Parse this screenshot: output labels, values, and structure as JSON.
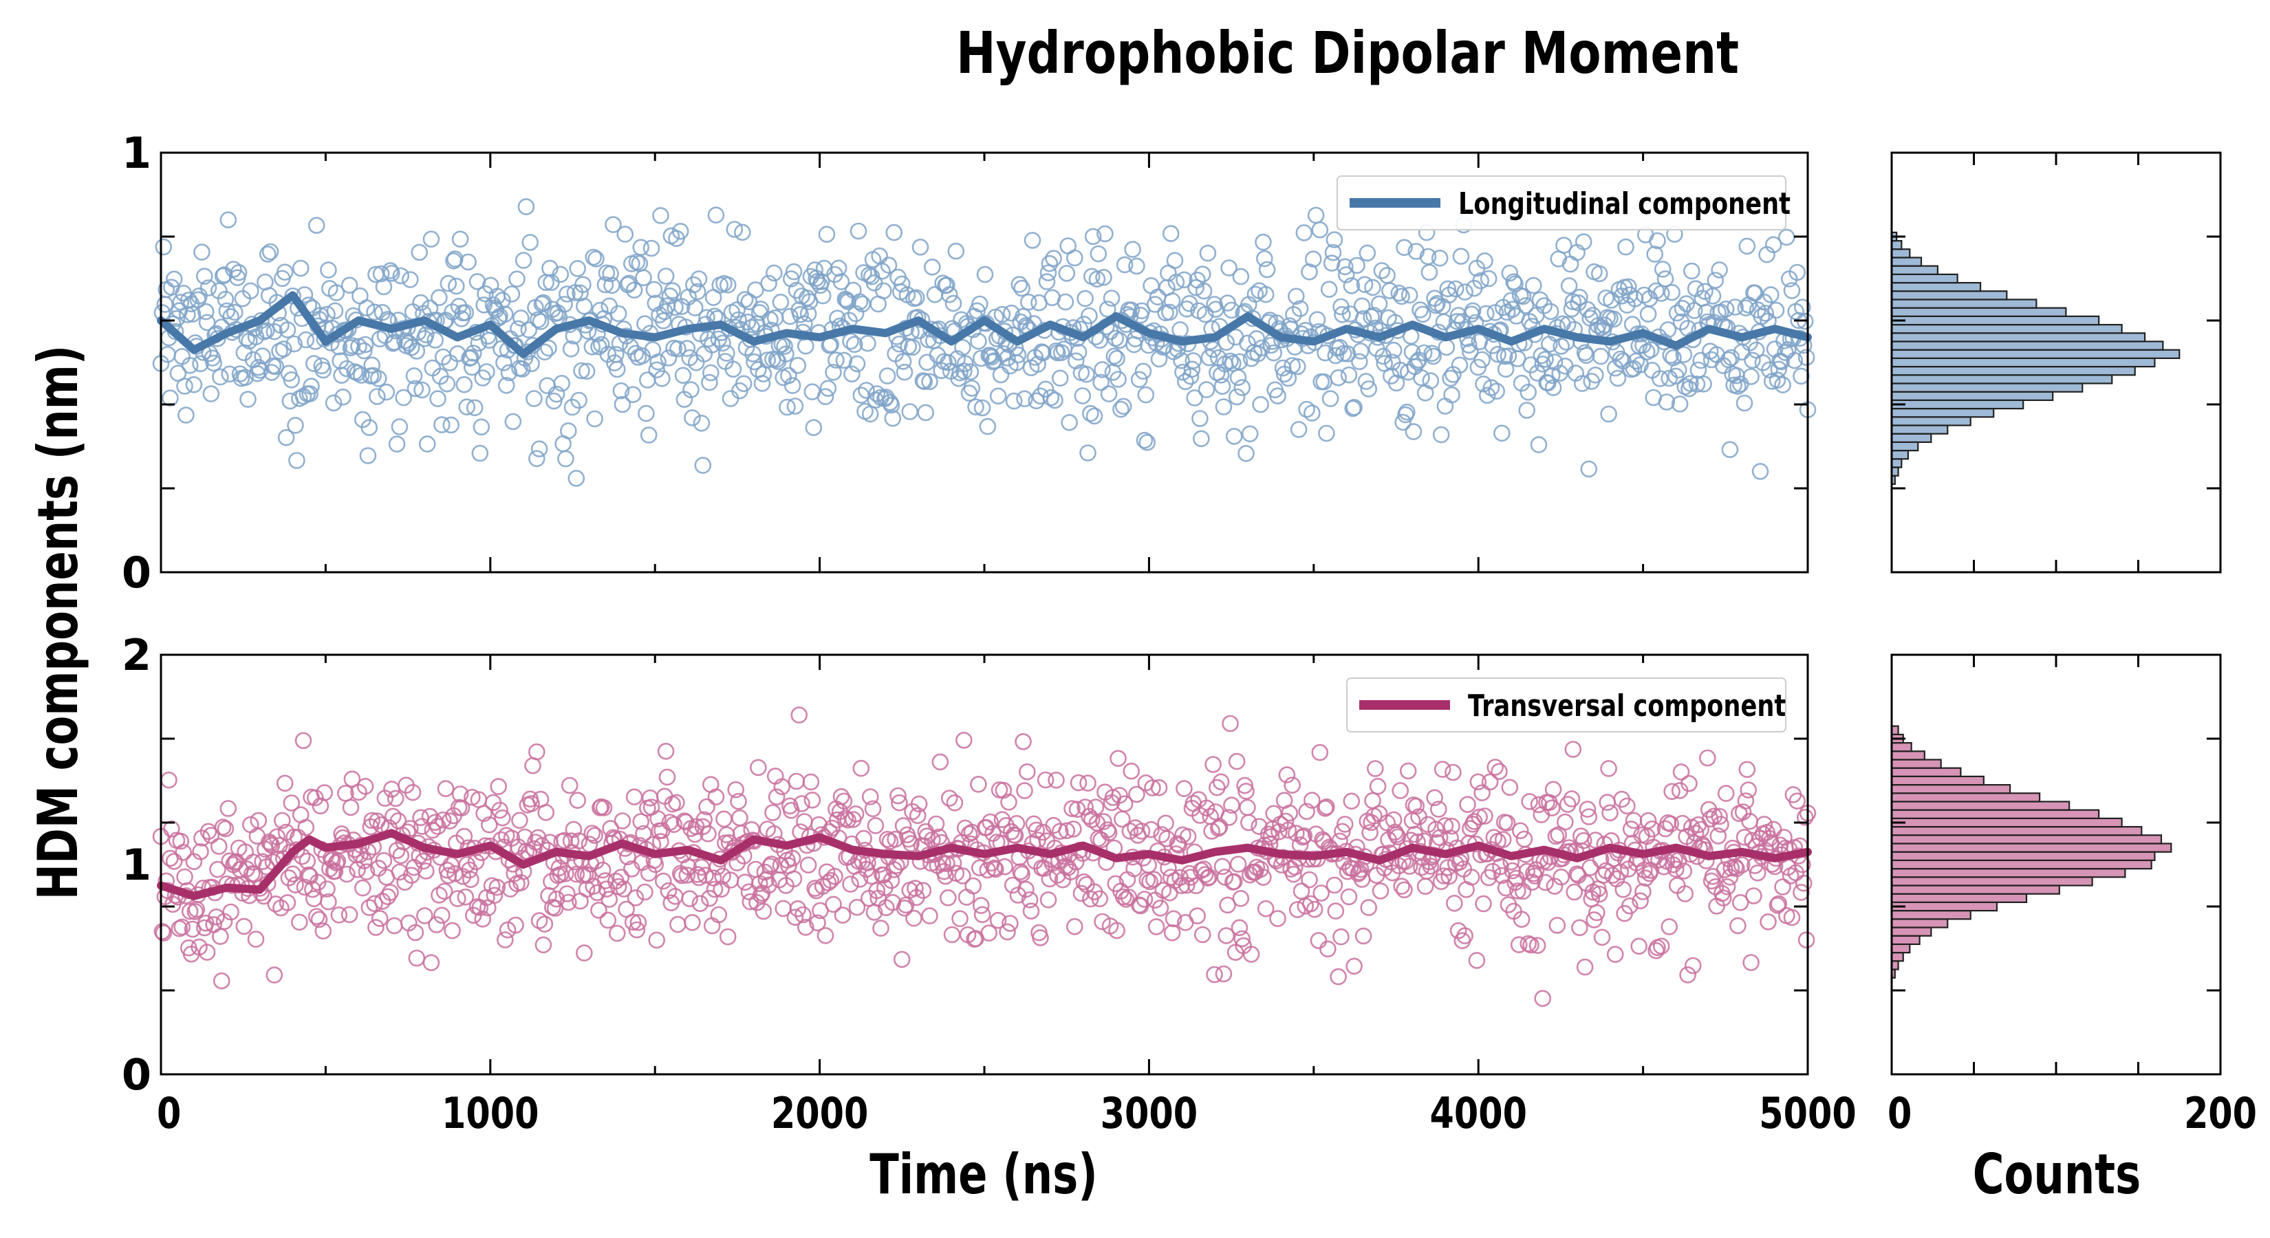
{
  "chart_data": {
    "type": "scatter",
    "title": "Hydrophobic Dipolar Moment",
    "xlabel": "Time (ns)",
    "ylabel": "HDM components (nm)",
    "hist_xlabel": "Counts",
    "xlim": [
      0,
      5000
    ],
    "x_ticks": [
      "0",
      "1000",
      "2000",
      "3000",
      "4000",
      "5000"
    ],
    "hist_xlim": [
      0,
      200
    ],
    "hist_x_ticks": [
      "0",
      "200"
    ],
    "grid": false,
    "legend_position": "top-right",
    "panels": [
      {
        "name": "Longitudinal component",
        "color": "#4878a8",
        "marker_color": "#7fa3c8",
        "ylim": [
          0,
          1
        ],
        "y_ticks": [
          "0",
          "1"
        ],
        "scatter_mean": 0.57,
        "scatter_sd": 0.11,
        "moving_average": [
          [
            0,
            0.6
          ],
          [
            100,
            0.53
          ],
          [
            200,
            0.57
          ],
          [
            300,
            0.6
          ],
          [
            400,
            0.66
          ],
          [
            500,
            0.55
          ],
          [
            600,
            0.6
          ],
          [
            700,
            0.58
          ],
          [
            800,
            0.6
          ],
          [
            900,
            0.56
          ],
          [
            1000,
            0.59
          ],
          [
            1100,
            0.52
          ],
          [
            1200,
            0.58
          ],
          [
            1300,
            0.6
          ],
          [
            1400,
            0.57
          ],
          [
            1500,
            0.56
          ],
          [
            1600,
            0.58
          ],
          [
            1700,
            0.59
          ],
          [
            1800,
            0.55
          ],
          [
            1900,
            0.57
          ],
          [
            2000,
            0.56
          ],
          [
            2100,
            0.58
          ],
          [
            2200,
            0.57
          ],
          [
            2300,
            0.6
          ],
          [
            2400,
            0.55
          ],
          [
            2500,
            0.6
          ],
          [
            2600,
            0.55
          ],
          [
            2700,
            0.59
          ],
          [
            2800,
            0.56
          ],
          [
            2900,
            0.61
          ],
          [
            3000,
            0.57
          ],
          [
            3100,
            0.55
          ],
          [
            3200,
            0.56
          ],
          [
            3300,
            0.61
          ],
          [
            3400,
            0.56
          ],
          [
            3500,
            0.55
          ],
          [
            3600,
            0.58
          ],
          [
            3700,
            0.56
          ],
          [
            3800,
            0.59
          ],
          [
            3900,
            0.56
          ],
          [
            4000,
            0.58
          ],
          [
            4100,
            0.55
          ],
          [
            4200,
            0.58
          ],
          [
            4300,
            0.56
          ],
          [
            4400,
            0.55
          ],
          [
            4500,
            0.57
          ],
          [
            4600,
            0.54
          ],
          [
            4700,
            0.58
          ],
          [
            4800,
            0.56
          ],
          [
            4900,
            0.58
          ],
          [
            5000,
            0.56
          ]
        ],
        "histogram": {
          "bin_edges_start": 0.21,
          "bin_width": 0.02,
          "counts": [
            2,
            4,
            6,
            10,
            16,
            24,
            34,
            48,
            62,
            80,
            98,
            116,
            134,
            148,
            160,
            175,
            165,
            154,
            140,
            126,
            106,
            88,
            70,
            54,
            40,
            28,
            18,
            11,
            6,
            3
          ]
        }
      },
      {
        "name": "Transversal component",
        "color": "#a8306a",
        "marker_color": "#c9709e",
        "ylim": [
          0,
          2
        ],
        "y_ticks": [
          "0",
          "1",
          "2"
        ],
        "scatter_mean": 1.04,
        "scatter_sd": 0.2,
        "moving_average": [
          [
            0,
            0.9
          ],
          [
            100,
            0.85
          ],
          [
            200,
            0.89
          ],
          [
            300,
            0.88
          ],
          [
            350,
            0.97
          ],
          [
            400,
            1.06
          ],
          [
            450,
            1.12
          ],
          [
            500,
            1.08
          ],
          [
            600,
            1.1
          ],
          [
            700,
            1.15
          ],
          [
            800,
            1.08
          ],
          [
            900,
            1.05
          ],
          [
            1000,
            1.09
          ],
          [
            1100,
            1.0
          ],
          [
            1200,
            1.06
          ],
          [
            1300,
            1.04
          ],
          [
            1400,
            1.1
          ],
          [
            1500,
            1.05
          ],
          [
            1600,
            1.07
          ],
          [
            1700,
            1.02
          ],
          [
            1800,
            1.12
          ],
          [
            1900,
            1.09
          ],
          [
            2000,
            1.13
          ],
          [
            2100,
            1.07
          ],
          [
            2200,
            1.05
          ],
          [
            2300,
            1.04
          ],
          [
            2400,
            1.08
          ],
          [
            2500,
            1.05
          ],
          [
            2600,
            1.08
          ],
          [
            2700,
            1.05
          ],
          [
            2800,
            1.09
          ],
          [
            2900,
            1.03
          ],
          [
            3000,
            1.05
          ],
          [
            3100,
            1.02
          ],
          [
            3200,
            1.06
          ],
          [
            3300,
            1.08
          ],
          [
            3400,
            1.05
          ],
          [
            3500,
            1.04
          ],
          [
            3600,
            1.06
          ],
          [
            3700,
            1.02
          ],
          [
            3800,
            1.08
          ],
          [
            3900,
            1.05
          ],
          [
            4000,
            1.09
          ],
          [
            4100,
            1.04
          ],
          [
            4200,
            1.07
          ],
          [
            4300,
            1.03
          ],
          [
            4400,
            1.08
          ],
          [
            4500,
            1.05
          ],
          [
            4600,
            1.08
          ],
          [
            4700,
            1.04
          ],
          [
            4800,
            1.06
          ],
          [
            4900,
            1.03
          ],
          [
            5000,
            1.06
          ]
        ],
        "histogram": {
          "bin_edges_start": 0.46,
          "bin_width": 0.04,
          "counts": [
            2,
            4,
            7,
            11,
            17,
            24,
            34,
            48,
            64,
            82,
            102,
            122,
            142,
            158,
            160,
            170,
            164,
            152,
            140,
            126,
            108,
            90,
            72,
            56,
            42,
            30,
            20,
            12,
            7,
            4
          ]
        }
      }
    ]
  }
}
